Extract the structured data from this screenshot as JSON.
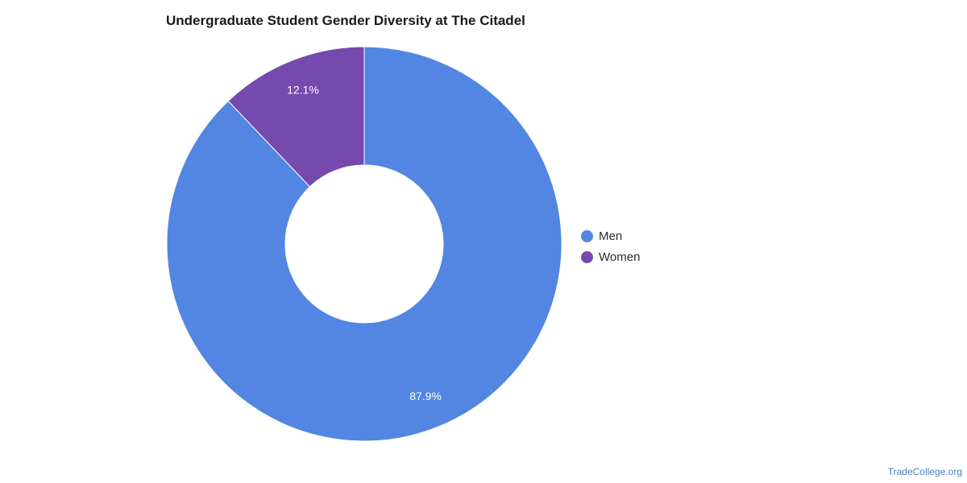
{
  "chart_data": {
    "type": "pie",
    "title": "Undergraduate Student Gender Diversity at The Citadel",
    "donut": true,
    "categories": [
      "Men",
      "Women"
    ],
    "values": [
      87.9,
      12.1
    ],
    "data_labels": [
      "87.9%",
      "12.1%"
    ],
    "colors": [
      "#5286e2",
      "#7649ae"
    ],
    "legend_position": "right"
  },
  "legend": {
    "items": [
      {
        "label": "Men",
        "color": "#5286e2"
      },
      {
        "label": "Women",
        "color": "#7649ae"
      }
    ]
  },
  "watermark": "TradeCollege.org"
}
